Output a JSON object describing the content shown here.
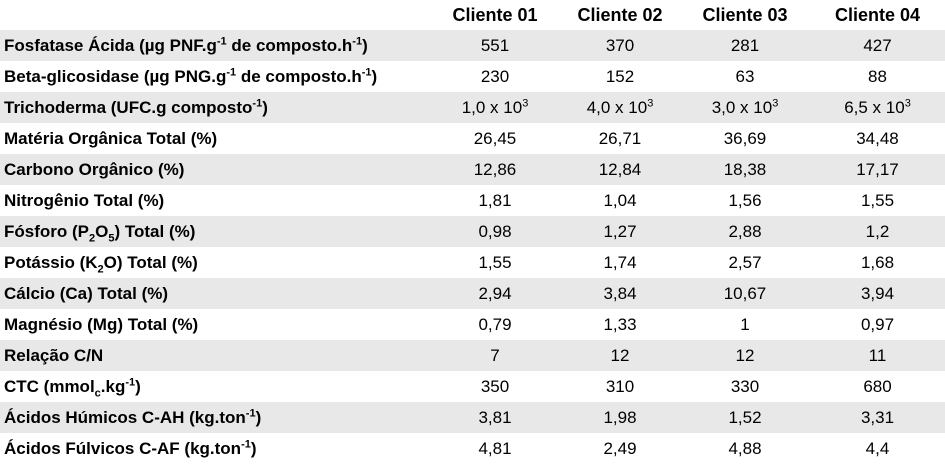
{
  "table": {
    "headers": [
      "",
      "Cliente 01",
      "Cliente 02",
      "Cliente 03",
      "Cliente 04"
    ],
    "rows": [
      {
        "label": [
          [
            "Fosfatase Ácida (µg PNF.g",
            ""
          ],
          [
            "-1",
            "sup"
          ],
          [
            " de composto.h",
            ""
          ],
          [
            "-1",
            "sup"
          ],
          [
            ")",
            ""
          ]
        ],
        "values": [
          "551",
          "370",
          "281",
          "427"
        ]
      },
      {
        "label": [
          [
            "Beta-glicosidase (µg PNG.g",
            ""
          ],
          [
            "-1",
            "sup"
          ],
          [
            " de composto.h",
            ""
          ],
          [
            "-1",
            "sup"
          ],
          [
            ")",
            ""
          ]
        ],
        "values": [
          "230",
          "152",
          "63",
          "88"
        ]
      },
      {
        "label": [
          [
            "Trichoderma (UFC.g composto",
            ""
          ],
          [
            "-1",
            "sup"
          ],
          [
            ")",
            ""
          ]
        ],
        "values": [
          [
            [
              "1,0 x 10",
              ""
            ],
            [
              "3",
              "sup"
            ]
          ],
          [
            [
              "4,0 x 10",
              ""
            ],
            [
              "3",
              "sup"
            ]
          ],
          [
            [
              "3,0 x 10",
              ""
            ],
            [
              "3",
              "sup"
            ]
          ],
          [
            [
              "6,5 x 10",
              ""
            ],
            [
              "3",
              "sup"
            ]
          ]
        ]
      },
      {
        "label": [
          [
            "Matéria Orgânica Total (%)",
            ""
          ]
        ],
        "values": [
          "26,45",
          "26,71",
          "36,69",
          "34,48"
        ]
      },
      {
        "label": [
          [
            "Carbono Orgânico (%)",
            ""
          ]
        ],
        "values": [
          "12,86",
          "12,84",
          "18,38",
          "17,17"
        ]
      },
      {
        "label": [
          [
            "Nitrogênio Total (%)",
            ""
          ]
        ],
        "values": [
          "1,81",
          "1,04",
          "1,56",
          "1,55"
        ]
      },
      {
        "label": [
          [
            "Fósforo (P",
            ""
          ],
          [
            "2",
            "sub"
          ],
          [
            "O",
            ""
          ],
          [
            "5",
            "sub"
          ],
          [
            ") Total (%)",
            ""
          ]
        ],
        "values": [
          "0,98",
          "1,27",
          "2,88",
          "1,2"
        ]
      },
      {
        "label": [
          [
            "Potássio (K",
            ""
          ],
          [
            "2",
            "sub"
          ],
          [
            "O) Total (%)",
            ""
          ]
        ],
        "values": [
          "1,55",
          "1,74",
          "2,57",
          "1,68"
        ]
      },
      {
        "label": [
          [
            "Cálcio (Ca) Total (%)",
            ""
          ]
        ],
        "values": [
          "2,94",
          "3,84",
          "10,67",
          "3,94"
        ]
      },
      {
        "label": [
          [
            "Magnésio (Mg) Total (%)",
            ""
          ]
        ],
        "values": [
          "0,79",
          "1,33",
          "1",
          "0,97"
        ]
      },
      {
        "label": [
          [
            "Relação C/N",
            ""
          ]
        ],
        "values": [
          "7",
          "12",
          "12",
          "11"
        ]
      },
      {
        "label": [
          [
            "CTC (mmol",
            ""
          ],
          [
            "c",
            "sub"
          ],
          [
            ".kg",
            ""
          ],
          [
            "-1",
            "sup"
          ],
          [
            ")",
            ""
          ]
        ],
        "values": [
          "350",
          "310",
          "330",
          "680"
        ]
      },
      {
        "label": [
          [
            "Ácidos Húmicos C-AH (kg.ton",
            ""
          ],
          [
            "-1",
            "sup"
          ],
          [
            ")",
            ""
          ]
        ],
        "values": [
          "3,81",
          "1,98",
          "1,52",
          "3,31"
        ]
      },
      {
        "label": [
          [
            "Ácidos Fúlvicos C-AF (kg.ton",
            ""
          ],
          [
            "-1",
            "sup"
          ],
          [
            ")",
            ""
          ]
        ],
        "values": [
          "4,81",
          "2,49",
          "4,88",
          "4,4"
        ]
      }
    ]
  }
}
